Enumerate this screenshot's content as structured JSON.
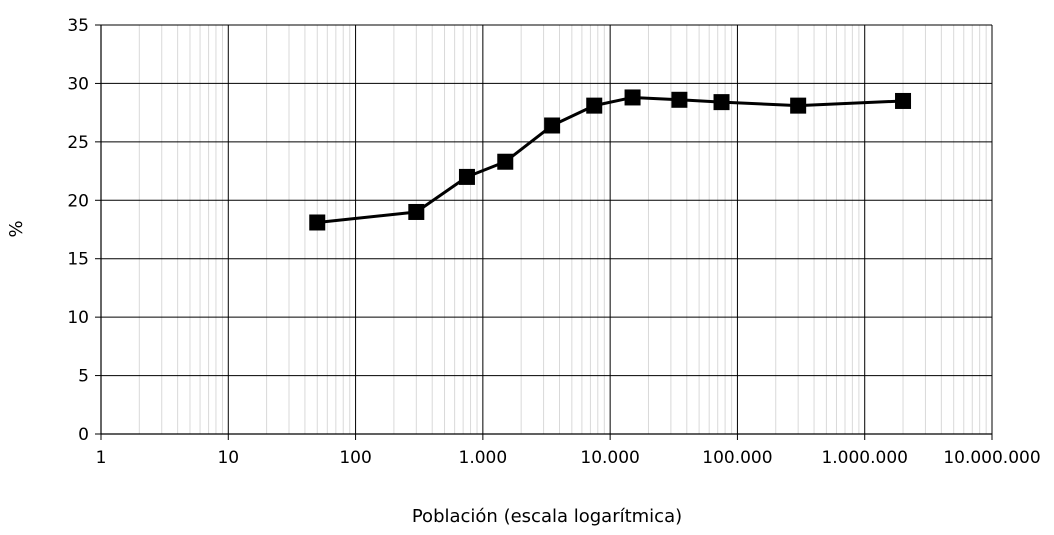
{
  "chart_data": {
    "type": "line",
    "title": "",
    "xlabel": "Población (escala logarítmica)",
    "ylabel": "%",
    "x_scale": "log",
    "xlim": [
      1,
      10000000
    ],
    "ylim": [
      0,
      35
    ],
    "x_ticks": [
      1,
      10,
      100,
      1000,
      10000,
      100000,
      1000000,
      10000000
    ],
    "x_tick_labels": [
      "1",
      "10",
      "100",
      "1.000",
      "10.000",
      "100.000",
      "1.000.000",
      "10.000.000"
    ],
    "y_ticks": [
      0,
      5,
      10,
      15,
      20,
      25,
      30,
      35
    ],
    "y_tick_labels": [
      "0",
      "5",
      "10",
      "15",
      "20",
      "25",
      "30",
      "35"
    ],
    "grid": true,
    "legend": "none",
    "line_color": "#000000",
    "marker": "square",
    "series": [
      {
        "x": [
          50,
          300,
          750,
          1500,
          3500,
          7500,
          15000,
          35000,
          75000,
          300000,
          2000000
        ],
        "y": [
          18.1,
          19.0,
          22.0,
          23.3,
          26.4,
          28.1,
          28.8,
          28.6,
          28.4,
          28.1,
          28.5
        ]
      }
    ]
  }
}
